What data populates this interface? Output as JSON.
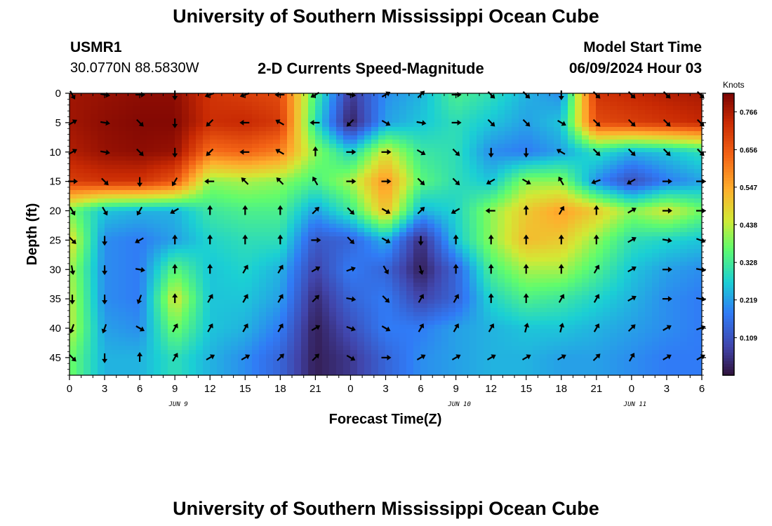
{
  "header": {
    "title": "University of Southern Mississippi Ocean Cube",
    "station_id": "USMR1",
    "station_coords": "30.0770N  88.5830W",
    "plot_title": "2-D Currents Speed-Magnitude",
    "model_start_label": "Model Start Time",
    "model_start_value": "06/09/2024 Hour 03"
  },
  "footer": {
    "title": "University of Southern Mississippi Ocean Cube"
  },
  "chart_data": {
    "type": "heatmap",
    "xlabel": "Forecast Time(Z)",
    "ylabel": "Depth (ft)",
    "x_tick_labels": [
      "0",
      "3",
      "6",
      "9",
      "12",
      "15",
      "18",
      "21",
      "0",
      "3",
      "6",
      "9",
      "12",
      "15",
      "18",
      "21",
      "0",
      "3",
      "6"
    ],
    "date_labels": [
      {
        "label": "JUN 9",
        "at_tick": 3.5
      },
      {
        "label": "JUN 10",
        "at_tick": 11.5
      },
      {
        "label": "JUN 11",
        "at_tick": 16.5
      }
    ],
    "y_ticks": [
      0,
      5,
      10,
      15,
      20,
      25,
      30,
      35,
      40,
      45
    ],
    "ylim": [
      0,
      48
    ],
    "colorbar": {
      "unit": "Knots",
      "min": 0.0,
      "max": 0.82,
      "ticks": [
        0.109,
        0.219,
        0.328,
        0.438,
        0.547,
        0.656,
        0.766
      ],
      "tick_labels": [
        "0.109",
        "0.219",
        "0.328",
        "0.438",
        "0.547",
        "0.656",
        "0.766"
      ]
    },
    "depths": [
      0,
      5,
      10,
      15,
      20,
      25,
      30,
      35,
      40,
      45
    ],
    "speed_grid": [
      [
        0.78,
        0.79,
        0.8,
        0.8,
        0.72,
        0.7,
        0.68,
        0.34,
        0.06,
        0.2,
        0.24,
        0.34,
        0.3,
        0.24,
        0.2,
        0.72,
        0.74,
        0.76,
        0.77
      ],
      [
        0.78,
        0.8,
        0.81,
        0.81,
        0.73,
        0.74,
        0.71,
        0.3,
        0.02,
        0.22,
        0.26,
        0.3,
        0.26,
        0.22,
        0.26,
        0.68,
        0.7,
        0.72,
        0.74
      ],
      [
        0.76,
        0.79,
        0.8,
        0.79,
        0.62,
        0.64,
        0.6,
        0.4,
        0.28,
        0.46,
        0.32,
        0.3,
        0.2,
        0.18,
        0.22,
        0.3,
        0.24,
        0.26,
        0.3
      ],
      [
        0.7,
        0.72,
        0.72,
        0.66,
        0.4,
        0.42,
        0.4,
        0.34,
        0.42,
        0.58,
        0.36,
        0.3,
        0.26,
        0.4,
        0.4,
        0.2,
        0.1,
        0.18,
        0.22
      ],
      [
        0.38,
        0.26,
        0.24,
        0.24,
        0.32,
        0.34,
        0.34,
        0.22,
        0.32,
        0.52,
        0.24,
        0.28,
        0.4,
        0.5,
        0.56,
        0.5,
        0.4,
        0.46,
        0.38
      ],
      [
        0.48,
        0.2,
        0.18,
        0.22,
        0.28,
        0.3,
        0.3,
        0.12,
        0.14,
        0.24,
        0.04,
        0.26,
        0.4,
        0.52,
        0.5,
        0.4,
        0.3,
        0.28,
        0.26
      ],
      [
        0.42,
        0.2,
        0.18,
        0.36,
        0.26,
        0.28,
        0.24,
        0.08,
        0.18,
        0.14,
        0.02,
        0.14,
        0.34,
        0.42,
        0.42,
        0.34,
        0.26,
        0.22,
        0.2
      ],
      [
        0.44,
        0.2,
        0.18,
        0.46,
        0.26,
        0.26,
        0.22,
        0.04,
        0.14,
        0.18,
        0.08,
        0.14,
        0.28,
        0.34,
        0.32,
        0.28,
        0.24,
        0.2,
        0.18
      ],
      [
        0.44,
        0.22,
        0.2,
        0.38,
        0.26,
        0.24,
        0.18,
        0.02,
        0.1,
        0.18,
        0.18,
        0.22,
        0.24,
        0.26,
        0.26,
        0.24,
        0.22,
        0.2,
        0.18
      ],
      [
        0.38,
        0.24,
        0.24,
        0.3,
        0.24,
        0.2,
        0.14,
        0.02,
        0.06,
        0.14,
        0.2,
        0.22,
        0.24,
        0.24,
        0.22,
        0.22,
        0.2,
        0.18,
        0.18
      ]
    ],
    "arrow_directions_deg_from_north": [
      [
        150,
        100,
        90,
        180,
        250,
        250,
        270,
        240,
        100,
        60,
        45,
        90,
        135,
        135,
        180,
        135,
        135,
        135,
        135
      ],
      [
        60,
        100,
        135,
        180,
        225,
        270,
        300,
        270,
        225,
        120,
        100,
        90,
        135,
        135,
        120,
        135,
        135,
        135,
        135
      ],
      [
        60,
        100,
        135,
        180,
        225,
        270,
        300,
        0,
        90,
        90,
        120,
        135,
        180,
        180,
        300,
        135,
        135,
        135,
        135
      ],
      [
        90,
        135,
        180,
        210,
        270,
        315,
        315,
        330,
        90,
        90,
        135,
        135,
        240,
        120,
        330,
        250,
        240,
        90,
        90
      ],
      [
        150,
        150,
        210,
        240,
        360,
        360,
        360,
        45,
        135,
        120,
        45,
        240,
        270,
        0,
        30,
        0,
        60,
        90,
        90
      ],
      [
        135,
        180,
        240,
        0,
        0,
        0,
        0,
        90,
        135,
        120,
        180,
        0,
        0,
        0,
        0,
        0,
        60,
        100,
        110
      ],
      [
        170,
        180,
        100,
        0,
        0,
        30,
        30,
        60,
        70,
        150,
        165,
        0,
        0,
        0,
        0,
        30,
        60,
        90,
        100
      ],
      [
        180,
        180,
        200,
        0,
        30,
        30,
        30,
        45,
        100,
        135,
        30,
        30,
        0,
        0,
        30,
        30,
        60,
        90,
        100
      ],
      [
        200,
        200,
        120,
        30,
        30,
        30,
        30,
        60,
        110,
        120,
        30,
        30,
        30,
        15,
        15,
        30,
        45,
        60,
        70
      ],
      [
        135,
        180,
        0,
        30,
        60,
        60,
        45,
        45,
        120,
        90,
        60,
        60,
        60,
        60,
        60,
        45,
        30,
        60,
        60
      ]
    ]
  }
}
